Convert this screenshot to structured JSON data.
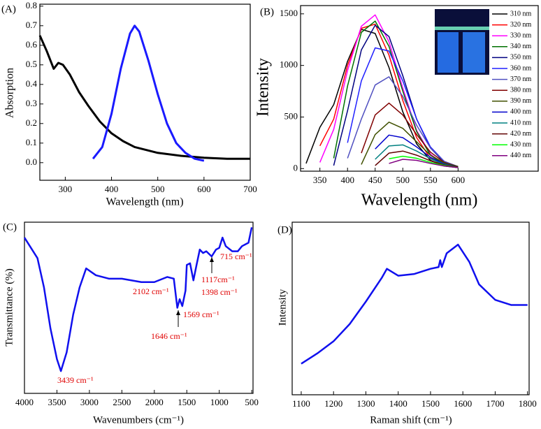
{
  "chart_data": [
    {
      "type": "line",
      "label": "(A)",
      "xlabel": "Wavelength (nm)",
      "ylabel": "Absorption",
      "xlim": [
        245,
        700
      ],
      "ylim": [
        -0.09,
        0.81
      ],
      "xticks": [
        300,
        400,
        500,
        600,
        700
      ],
      "yticks": [
        {
          "value": 0,
          "label": "0.0"
        },
        0.1,
        0.2,
        0.3,
        0.4,
        0.5,
        0.6,
        0.7,
        0.8
      ],
      "series": [
        {
          "color": "#000000",
          "x": [
            245,
            260,
            275,
            285,
            295,
            310,
            330,
            350,
            375,
            400,
            425,
            450,
            500,
            550,
            600,
            650,
            700
          ],
          "values": [
            0.65,
            0.57,
            0.48,
            0.51,
            0.5,
            0.45,
            0.36,
            0.29,
            0.21,
            0.15,
            0.11,
            0.08,
            0.05,
            0.035,
            0.025,
            0.02,
            0.02
          ]
        },
        {
          "color": "#1a1aff",
          "x": [
            360,
            380,
            400,
            420,
            440,
            450,
            460,
            480,
            500,
            520,
            540,
            560,
            580,
            600
          ],
          "values": [
            0.02,
            0.08,
            0.25,
            0.48,
            0.66,
            0.7,
            0.67,
            0.52,
            0.35,
            0.2,
            0.1,
            0.05,
            0.02,
            0.01
          ]
        }
      ]
    },
    {
      "type": "line",
      "label": "(B)",
      "xlabel": "Wavelength (nm)",
      "ylabel": "Intensity",
      "xlim": [
        315,
        745
      ],
      "ylim": [
        -25,
        1580
      ],
      "xticks": [
        350,
        400,
        450,
        500,
        550,
        600
      ],
      "yticks": [
        0,
        500,
        1000,
        1500
      ],
      "legend": "upper right",
      "x": [
        325,
        350,
        375,
        400,
        425,
        450,
        475,
        500,
        525,
        550,
        575,
        600
      ],
      "series": [
        {
          "name": "310 nm",
          "color": "#000000",
          "values": [
            50,
            400,
            620,
            1040,
            1350,
            1310,
            980,
            550,
            240,
            80,
            25,
            10
          ]
        },
        {
          "name": "320 nm",
          "color": "#ff0000",
          "values": [
            null,
            220,
            480,
            1000,
            1360,
            1400,
            1100,
            660,
            300,
            100,
            30,
            10
          ]
        },
        {
          "name": "330 nm",
          "color": "#ff00ff",
          "values": [
            null,
            60,
            380,
            950,
            1380,
            1490,
            1230,
            780,
            370,
            140,
            40,
            10
          ]
        },
        {
          "name": "340 nm",
          "color": "#007000",
          "values": [
            null,
            null,
            100,
            800,
            1320,
            1430,
            1185,
            750,
            360,
            130,
            40,
            10
          ]
        },
        {
          "name": "350 nm",
          "color": "#000080",
          "values": [
            null,
            null,
            30,
            560,
            1150,
            1390,
            1280,
            900,
            480,
            200,
            60,
            15
          ]
        },
        {
          "name": "360 nm",
          "color": "#2020ff",
          "values": [
            null,
            null,
            null,
            250,
            850,
            1170,
            1140,
            850,
            480,
            210,
            70,
            15
          ]
        },
        {
          "name": "370 nm",
          "color": "#5050c0",
          "values": [
            null,
            null,
            null,
            100,
            480,
            810,
            890,
            700,
            420,
            200,
            70,
            20
          ]
        },
        {
          "name": "380 nm",
          "color": "#800000",
          "values": [
            null,
            null,
            null,
            null,
            150,
            520,
            635,
            520,
            330,
            160,
            60,
            20
          ]
        },
        {
          "name": "390 nm",
          "color": "#405000",
          "values": [
            null,
            null,
            null,
            null,
            40,
            330,
            450,
            390,
            260,
            130,
            55,
            20
          ]
        },
        {
          "name": "400 nm",
          "color": "#0000cc",
          "values": [
            null,
            null,
            null,
            null,
            null,
            190,
            325,
            300,
            210,
            110,
            45,
            15
          ]
        },
        {
          "name": "410 nm",
          "color": "#008080",
          "values": [
            null,
            null,
            null,
            null,
            null,
            90,
            220,
            230,
            170,
            95,
            40,
            15
          ]
        },
        {
          "name": "420 nm",
          "color": "#600000",
          "values": [
            null,
            null,
            null,
            null,
            null,
            30,
            150,
            170,
            130,
            75,
            35,
            15
          ]
        },
        {
          "name": "430 nm",
          "color": "#00ff00",
          "values": [
            null,
            null,
            null,
            null,
            null,
            null,
            95,
            120,
            100,
            60,
            30,
            10
          ]
        },
        {
          "name": "440 nm",
          "color": "#800080",
          "values": [
            null,
            null,
            null,
            null,
            null,
            null,
            50,
            90,
            80,
            50,
            25,
            10
          ]
        }
      ]
    },
    {
      "type": "line",
      "label": "(C)",
      "xlabel": "Wavenumbers (cm⁻¹)",
      "ylabel": "Transmittance (%)",
      "xlim": [
        4000,
        480
      ],
      "ylim": [
        0,
        100
      ],
      "xticks": [
        4000,
        3500,
        3000,
        2500,
        2000,
        1500,
        1000,
        500
      ],
      "x": [
        4000,
        3800,
        3700,
        3600,
        3500,
        3439,
        3350,
        3250,
        3150,
        3050,
        2900,
        2700,
        2500,
        2200,
        2000,
        1800,
        1700,
        1646,
        1610,
        1569,
        1520,
        1500,
        1450,
        1398,
        1350,
        1300,
        1250,
        1200,
        1117,
        1050,
        1000,
        950,
        900,
        800,
        715,
        650,
        550,
        500
      ],
      "values": [
        91,
        79,
        62,
        38,
        20,
        13,
        24,
        46,
        62,
        73,
        69,
        67,
        67,
        65,
        65,
        68,
        67,
        50,
        55,
        51,
        60,
        75,
        76,
        66,
        75,
        84,
        82,
        83,
        80,
        84,
        85,
        91,
        86,
        83,
        83,
        86,
        88,
        97
      ],
      "color": "#1010ee",
      "annotations": [
        "3439 cm⁻¹",
        "2102 cm⁻¹",
        "1646 cm⁻¹",
        "1569 cm⁻¹",
        "1398 cm⁻¹",
        "1117cm⁻¹",
        "715 cm⁻¹"
      ],
      "annotation_color": "#e00000"
    },
    {
      "type": "line",
      "label": "(D)",
      "xlabel": "Raman shift (cm⁻¹)",
      "ylabel": "Intensity",
      "xlim": [
        1072,
        1805
      ],
      "ylim": [
        0,
        100
      ],
      "xticks": [
        1100,
        1200,
        1300,
        1400,
        1500,
        1600,
        1700,
        1800
      ],
      "x": [
        1100,
        1150,
        1200,
        1250,
        1300,
        1350,
        1365,
        1400,
        1450,
        1500,
        1525,
        1530,
        1535,
        1550,
        1585,
        1620,
        1650,
        1700,
        1750,
        1800
      ],
      "values": [
        18,
        24,
        31,
        41,
        54,
        68,
        73,
        69,
        70,
        73,
        74,
        78,
        74,
        82,
        87,
        77,
        64,
        55,
        52,
        52
      ],
      "color": "#1010ee"
    }
  ]
}
